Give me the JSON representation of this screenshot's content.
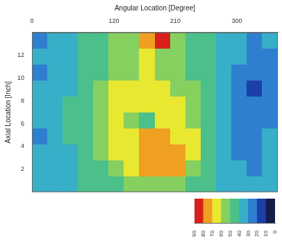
{
  "chart_data": {
    "type": "heatmap",
    "x_label": "Angular Location [Degree]",
    "y_label": "Axial Location [Inch]",
    "xlim": [
      0,
      360
    ],
    "xticks": [
      0,
      120,
      210,
      300
    ],
    "ylim": [
      0,
      14
    ],
    "yticks": [
      2,
      4,
      6,
      8,
      10,
      12
    ],
    "grid": false,
    "x": [
      11.25,
      33.75,
      56.25,
      78.75,
      101.25,
      123.75,
      146.25,
      168.75,
      191.25,
      213.75,
      236.25,
      258.75,
      281.25,
      303.75,
      326.25,
      348.75
    ],
    "y": [
      0.7,
      2.1,
      3.5,
      4.9,
      6.3,
      7.7,
      9.1,
      10.5,
      11.9,
      13.3
    ],
    "cells": [
      [
        35,
        32,
        38,
        42,
        45,
        48,
        52,
        55,
        55,
        50,
        45,
        40,
        35,
        30,
        32,
        35
      ],
      [
        32,
        30,
        36,
        42,
        48,
        55,
        62,
        72,
        75,
        70,
        55,
        45,
        36,
        30,
        28,
        32
      ],
      [
        30,
        34,
        38,
        44,
        50,
        62,
        68,
        76,
        78,
        72,
        62,
        48,
        35,
        28,
        25,
        30
      ],
      [
        28,
        35,
        40,
        46,
        52,
        64,
        66,
        70,
        74,
        68,
        60,
        46,
        32,
        22,
        26,
        30
      ],
      [
        30,
        36,
        42,
        48,
        55,
        66,
        55,
        45,
        62,
        66,
        56,
        44,
        30,
        20,
        24,
        28
      ],
      [
        32,
        34,
        40,
        48,
        56,
        65,
        64,
        62,
        66,
        60,
        52,
        42,
        30,
        24,
        22,
        26
      ],
      [
        30,
        32,
        38,
        46,
        52,
        60,
        66,
        68,
        64,
        58,
        50,
        42,
        32,
        26,
        18,
        24
      ],
      [
        28,
        30,
        36,
        44,
        48,
        52,
        56,
        60,
        56,
        52,
        48,
        40,
        32,
        28,
        20,
        26
      ],
      [
        30,
        32,
        38,
        44,
        46,
        50,
        52,
        62,
        58,
        50,
        46,
        40,
        34,
        30,
        24,
        28
      ],
      [
        28,
        30,
        36,
        42,
        46,
        50,
        56,
        70,
        85,
        55,
        48,
        40,
        34,
        30,
        26,
        30
      ]
    ],
    "colorbar": {
      "range": [
        0,
        90
      ],
      "ticks": [
        0,
        10,
        20,
        30,
        40,
        50,
        60,
        70,
        80,
        90
      ],
      "colors": [
        "#141c4a",
        "#1c3fa8",
        "#2f7fd0",
        "#38afc8",
        "#4cc08a",
        "#86d060",
        "#e8e830",
        "#f0a020",
        "#d8201a"
      ]
    }
  }
}
